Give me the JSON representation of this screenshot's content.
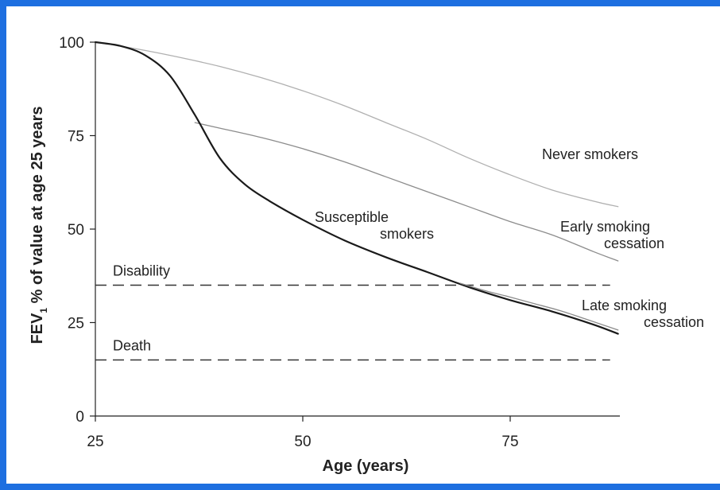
{
  "chart_data": {
    "type": "line",
    "xlabel": "Age (years)",
    "ylabel": {
      "prefix": "FEV",
      "subscript": "1",
      "suffix": " % of value at age 25 years"
    },
    "xlim": [
      25,
      88
    ],
    "ylim": [
      0,
      100
    ],
    "x_ticks": [
      25,
      50,
      75
    ],
    "y_ticks": [
      0,
      25,
      50,
      75,
      100
    ],
    "series": [
      {
        "name": "Never smokers",
        "color": "#b0b0b0",
        "width": 1.3,
        "points": [
          [
            25,
            100
          ],
          [
            30,
            98.2
          ],
          [
            35,
            96.0
          ],
          [
            40,
            93.5
          ],
          [
            45,
            90.5
          ],
          [
            50,
            87.0
          ],
          [
            55,
            83.0
          ],
          [
            60,
            78.5
          ],
          [
            65,
            74.0
          ],
          [
            70,
            69.0
          ],
          [
            75,
            64.5
          ],
          [
            80,
            60.5
          ],
          [
            85,
            57.5
          ],
          [
            88,
            56
          ]
        ]
      },
      {
        "name": "Early smoking cessation",
        "color": "#8c8c8c",
        "width": 1.3,
        "points": [
          [
            37,
            78.5
          ],
          [
            40,
            77.0
          ],
          [
            45,
            74.5
          ],
          [
            50,
            71.5
          ],
          [
            55,
            68.0
          ],
          [
            60,
            64.0
          ],
          [
            65,
            60.0
          ],
          [
            70,
            56.0
          ],
          [
            75,
            52.0
          ],
          [
            80,
            48.5
          ],
          [
            85,
            44.0
          ],
          [
            88,
            41.5
          ]
        ]
      },
      {
        "name": "Susceptible smokers",
        "color": "#1a1a1a",
        "width": 2.2,
        "points": [
          [
            25,
            100
          ],
          [
            28,
            99.0
          ],
          [
            31,
            96.5
          ],
          [
            34,
            91.0
          ],
          [
            37,
            80.5
          ],
          [
            40,
            69.0
          ],
          [
            43,
            62.0
          ],
          [
            46,
            57.5
          ],
          [
            50,
            52.5
          ],
          [
            55,
            47.0
          ],
          [
            60,
            42.5
          ],
          [
            65,
            38.5
          ],
          [
            70,
            34.5
          ],
          [
            75,
            31.0
          ],
          [
            80,
            28.0
          ],
          [
            85,
            24.5
          ],
          [
            88,
            22
          ]
        ]
      },
      {
        "name": "Late smoking cessation",
        "color": "#8c8c8c",
        "width": 1.3,
        "points": [
          [
            69,
            35.5
          ],
          [
            72,
            33.5
          ],
          [
            75,
            31.8
          ],
          [
            78,
            30.0
          ],
          [
            81,
            28.2
          ],
          [
            84,
            26.0
          ],
          [
            88,
            23
          ]
        ]
      }
    ],
    "reference_lines": [
      {
        "label": "Disability",
        "y": 35
      },
      {
        "label": "Death",
        "y": 15
      }
    ],
    "annotations": [
      {
        "lines": [
          "Never smokers"
        ]
      },
      {
        "lines": [
          "Early smoking",
          "cessation"
        ]
      },
      {
        "lines": [
          "Susceptible",
          "smokers"
        ]
      },
      {
        "lines": [
          "Late smoking",
          "cessation"
        ]
      }
    ],
    "grid": false,
    "legend": "none"
  }
}
